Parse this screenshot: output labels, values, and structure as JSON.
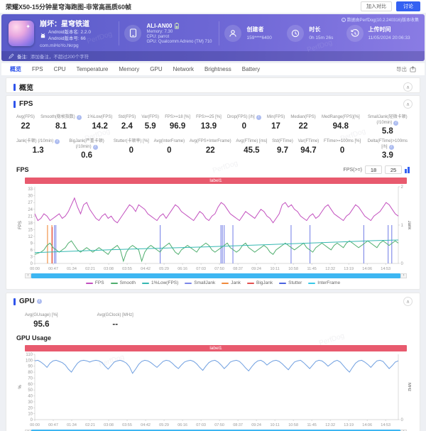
{
  "watermark": "PerfDog",
  "topbar": {
    "title": "荣耀X50-15分钟星穹海跑图-非常高画质60帧",
    "compare_label": "加入对比",
    "discuss_label": "讨论"
  },
  "banner": {
    "game_title": "崩坏：星穹铁道",
    "version_name": "Android版本名: 2.2.0",
    "version_code": "Android版本号: 66",
    "package": "com.miHoYo.hkrpg",
    "device_name": "ALI-AN00",
    "memory": "Memory: 7.30",
    "cpu": "CPU: parrot",
    "gpu": "GPU: Qualcomm Adreno (TM) 710",
    "creator_label": "创建者",
    "creator_value": "159****6400",
    "duration_label": "时长",
    "duration_value": "0h 15m 26s",
    "upload_label": "上传时间",
    "upload_value": "11/05/2024 20:06:33",
    "version_note": "数据由PerfDog(10.2.240316)版本收集",
    "remark_label": "备注:",
    "remark_text": "添加备注，不超过200个字符"
  },
  "tabs": {
    "items": [
      "概览",
      "FPS",
      "CPU",
      "Temperature",
      "Memory",
      "GPU",
      "Network",
      "Brightness",
      "Battery"
    ],
    "active_index": 0,
    "export_label": "导出"
  },
  "overview": {
    "title": "概览"
  },
  "fps_card": {
    "title": "FPS",
    "stats_row1": [
      {
        "label": "Avg(FPS)",
        "value": "22"
      },
      {
        "label": "Smooth(稳帧指数)",
        "value": "8.1",
        "info": true
      },
      {
        "label": "1%Low(FPS)",
        "value": "14.2"
      },
      {
        "label": "Std(FPS)",
        "value": "2.4"
      },
      {
        "label": "Var(FPS)",
        "value": "5.9"
      },
      {
        "label": "FPS>=18 [%]",
        "value": "96.9"
      },
      {
        "label": "FPS>=25 [%]",
        "value": "13.9"
      },
      {
        "label": "Drop(FPS) [/h]",
        "value": "0",
        "info": true
      },
      {
        "label": "Min(FPS)",
        "value": "17"
      },
      {
        "label": "Median(FPS)",
        "value": "22"
      },
      {
        "label": "MedRange(FPS)[%]",
        "value": "94.8"
      },
      {
        "label": "SmallJank(轻微卡顿) (/10min)",
        "value": "5.8",
        "info": true
      }
    ],
    "stats_row2": [
      {
        "label": "Jank(卡顿) (/10min)",
        "value": "1.3",
        "info": true
      },
      {
        "label": "BigJank(严重卡顿) (/10min)",
        "value": "0.6",
        "info": true
      },
      {
        "label": "Stutter(卡顿率) [%]",
        "value": "0"
      },
      {
        "label": "Avg(InterFrame)",
        "value": "0"
      },
      {
        "label": "Avg(FPS+InterFrame)",
        "value": "22"
      },
      {
        "label": "Avg(FTime) [ms]",
        "value": "45.5"
      },
      {
        "label": "Std(FTime)",
        "value": "9.7"
      },
      {
        "label": "Var(FTime)",
        "value": "94.7"
      },
      {
        "label": "FTime>=100ms [%]",
        "value": "0"
      },
      {
        "label": "Delta(FTime)>100ms [/h]",
        "value": "3.9",
        "info": true
      }
    ],
    "chart_header": {
      "title": "FPS",
      "threshold_label": "FPS(>=)",
      "threshold1": "18",
      "threshold2": "25"
    },
    "label_bar": "label1",
    "legend": [
      {
        "name": "FPS",
        "color": "#c24fbe"
      },
      {
        "name": "Smooth",
        "color": "#4fae6e"
      },
      {
        "name": "1%Low(FPS)",
        "color": "#35b8b2"
      },
      {
        "name": "SmallJank",
        "color": "#7b86e8"
      },
      {
        "name": "Jank",
        "color": "#f08a3c"
      },
      {
        "name": "BigJank",
        "color": "#e4504f"
      },
      {
        "name": "Stutter",
        "color": "#4a62e0"
      },
      {
        "name": "InterFrame",
        "color": "#38c8e8"
      }
    ]
  },
  "gpu_card": {
    "title": "GPU",
    "stats": [
      {
        "label": "Avg(GUsage) [%]",
        "value": "95.6"
      },
      {
        "label": "Avg(GClock) [MHz]",
        "value": "--"
      }
    ],
    "section_title": "GPU Usage",
    "label_bar": "label1",
    "legend": [
      {
        "name": "GUsage",
        "color": "#6f9fe0"
      }
    ]
  },
  "chart_data": [
    {
      "type": "line",
      "title": "FPS",
      "ylabel": "FPS",
      "ylabel_right": "Jank",
      "ylim": [
        0,
        34
      ],
      "y_ticks": [
        0,
        3,
        6,
        9,
        12,
        15,
        18,
        21,
        24,
        27,
        30,
        33
      ],
      "ylim_right": [
        0,
        2
      ],
      "y_ticks_right": [
        0,
        1,
        2
      ],
      "x_ticks": [
        "00:00",
        "00:47",
        "01:34",
        "02:21",
        "03:08",
        "03:55",
        "04:42",
        "05:29",
        "06:16",
        "07:03",
        "07:50",
        "08:37",
        "09:24",
        "10:11",
        "10:58",
        "11:45",
        "12:32",
        "13:19",
        "14:06",
        "14:53"
      ],
      "x_tick_frac": 0.0508,
      "series": [
        {
          "name": "FPS",
          "color": "#c24fbe",
          "values": [
            22,
            19,
            20,
            22,
            21,
            19,
            20,
            21,
            22,
            20,
            21,
            23,
            26,
            29,
            25,
            22,
            26,
            27,
            24,
            22,
            20,
            19,
            21,
            22,
            20,
            21,
            19,
            18,
            20,
            22,
            24,
            26,
            25,
            23,
            26,
            25,
            24,
            22,
            21,
            20,
            19,
            21,
            22,
            20,
            22,
            24,
            26,
            25,
            23,
            22,
            21,
            20,
            19,
            21,
            23,
            22,
            20,
            19,
            21,
            22,
            25,
            27,
            26,
            24,
            22,
            21,
            20,
            19,
            21,
            23,
            22,
            21,
            20,
            22,
            24,
            23,
            21,
            20,
            18,
            20,
            22,
            26,
            27,
            25,
            26,
            24,
            23,
            21,
            20,
            19,
            21,
            22,
            20,
            21,
            23,
            25,
            26,
            24,
            22,
            21,
            20,
            19,
            21,
            22,
            24,
            26,
            25,
            23,
            21,
            20,
            19,
            21,
            22,
            23,
            25,
            27,
            26,
            24,
            22,
            21
          ]
        },
        {
          "name": "Smooth",
          "color": "#4fae6e",
          "values": [
            4,
            4.5,
            5,
            6,
            8,
            9,
            7,
            6,
            5,
            6,
            7,
            9,
            10,
            8,
            6,
            5,
            6,
            7,
            6,
            5,
            6,
            7,
            6,
            5,
            4,
            6,
            7,
            8,
            6,
            1,
            5,
            7,
            8,
            7,
            6,
            1,
            5,
            7,
            8,
            7,
            6,
            5,
            7,
            8,
            9,
            7,
            5,
            4,
            6,
            7,
            8,
            7,
            6,
            5,
            7,
            8,
            9,
            8,
            6,
            5,
            6,
            7,
            8,
            9,
            7,
            6,
            5,
            6,
            8,
            9,
            7,
            6,
            5,
            6,
            7,
            8,
            7,
            5,
            4,
            6,
            7,
            8,
            9,
            8,
            7,
            6,
            7,
            8,
            9,
            7,
            6,
            5,
            7,
            8,
            9,
            8,
            7,
            6,
            8,
            9,
            8,
            7,
            9,
            10,
            9,
            8,
            7,
            8,
            9,
            10,
            9,
            8,
            7,
            9,
            10,
            9,
            8,
            9,
            10,
            9
          ]
        },
        {
          "name": "1%Low(FPS)",
          "color": "#35b8b2",
          "values": [
            4.8,
            5.2,
            5.6,
            6.0,
            6.4,
            6.7,
            7.0,
            7.3,
            7.7,
            8.1,
            8.5,
            8.9,
            9.3,
            9.7,
            10.1,
            10.4
          ]
        }
      ],
      "events": [
        {
          "name": "SmallJank",
          "color": "#7b86e8",
          "value": 1,
          "times": [
            0.054,
            0.058,
            0.345,
            0.512,
            0.516,
            0.521,
            0.545,
            0.705,
            0.757,
            0.905,
            0.972,
            0.982
          ]
        },
        {
          "name": "Jank",
          "color": "#f08a3c",
          "value": 1,
          "times": [
            0.035,
            0.047
          ]
        },
        {
          "name": "BigJank",
          "color": "#e4504f",
          "value": 0.95,
          "times": [
            0.048
          ]
        }
      ]
    },
    {
      "type": "line",
      "title": "GPU Usage",
      "ylabel": "%",
      "ylabel_right": "MHz",
      "ylim": [
        0,
        110
      ],
      "y_ticks": [
        0,
        10,
        20,
        30,
        40,
        50,
        60,
        70,
        80,
        90,
        100,
        110
      ],
      "ylim_right": [
        0,
        1
      ],
      "y_ticks_right": [
        0
      ],
      "x_ticks": [
        "00:00",
        "00:47",
        "01:34",
        "02:21",
        "03:08",
        "03:55",
        "04:42",
        "05:29",
        "06:16",
        "07:03",
        "07:50",
        "08:37",
        "09:24",
        "10:11",
        "10:58",
        "11:45",
        "12:32",
        "13:19",
        "14:06",
        "14:53"
      ],
      "x_tick_frac": 0.0508,
      "series": [
        {
          "name": "GUsage",
          "color": "#6f9fe0",
          "values": [
            99,
            100,
            97,
            93,
            88,
            95,
            99,
            100,
            98,
            96,
            92,
            85,
            80,
            88,
            95,
            99,
            100,
            99,
            97,
            99,
            100,
            99,
            96,
            90,
            85,
            91,
            97,
            99,
            100,
            98,
            95,
            89,
            78,
            85,
            93,
            98,
            100,
            99,
            96,
            92,
            88,
            93,
            98,
            100,
            99,
            95,
            90,
            86,
            92,
            97,
            99,
            100,
            98,
            94,
            88,
            83,
            90,
            96,
            99,
            100,
            97,
            92,
            86,
            91,
            97,
            99,
            100,
            98,
            93,
            87,
            82,
            89,
            95,
            99,
            100,
            97,
            92,
            96,
            99,
            100,
            98,
            94,
            89,
            84,
            91,
            97,
            99,
            100,
            96,
            91,
            86,
            92,
            98,
            100,
            99,
            95,
            90,
            94,
            98,
            100,
            97,
            91,
            85,
            80,
            88,
            95,
            99,
            100,
            97,
            93,
            88,
            94,
            99,
            100,
            98,
            92,
            86,
            91,
            97,
            99
          ]
        }
      ],
      "events": []
    }
  ]
}
